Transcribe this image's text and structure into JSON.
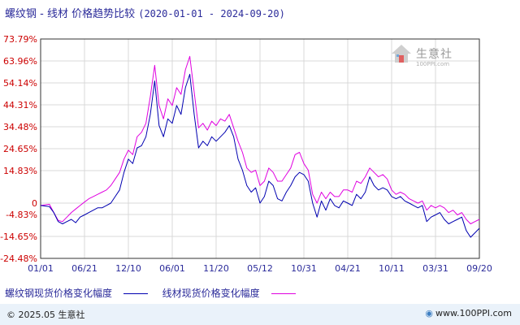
{
  "title": {
    "main": "螺纹钢 - 线材 价格趋势比较",
    "range": "(2020-01-01 - 2024-09-20)"
  },
  "logo": {
    "text": "生意社",
    "sub": "100PPI.com"
  },
  "footer": {
    "copyright": "© 2025.05 生意社",
    "website": "www.100PPI.com"
  },
  "colors": {
    "series1": "#0000b0",
    "series2": "#e000e0",
    "grid": "#d8d8d8",
    "axis": "#333333"
  },
  "chart_data": {
    "type": "line",
    "x_ticks": [
      "01/01",
      "06/21",
      "12/10",
      "06/01",
      "11/20",
      "05/12",
      "10/31",
      "04/21",
      "10/11",
      "03/31",
      "09/20"
    ],
    "y_ticks": [
      "73.79%",
      "63.96%",
      "54.14%",
      "44.31%",
      "34.48%",
      "24.65%",
      "14.83%",
      "0",
      "-4.83%",
      "-14.65%",
      "-24.48%"
    ],
    "y_tick_values": [
      73.79,
      63.96,
      54.14,
      44.31,
      34.48,
      24.65,
      14.83,
      0,
      -4.83,
      -14.65,
      -24.48
    ],
    "ylim": [
      -24.48,
      73.79
    ],
    "xlim": [
      0,
      100
    ],
    "series": [
      {
        "name": "螺纹钢现货价格变化幅度",
        "color": "#0000b0",
        "x": [
          0,
          2,
          3,
          4,
          5,
          6,
          7,
          8,
          9,
          10,
          11,
          12,
          13,
          14,
          15,
          16,
          17,
          18,
          19,
          20,
          21,
          22,
          23,
          24,
          25,
          26,
          27,
          28,
          29,
          30,
          31,
          32,
          33,
          34,
          35,
          36,
          37,
          38,
          39,
          40,
          41,
          42,
          43,
          44,
          45,
          46,
          47,
          48,
          49,
          50,
          51,
          52,
          53,
          54,
          55,
          56,
          57,
          58,
          59,
          60,
          61,
          62,
          63,
          64,
          65,
          66,
          67,
          68,
          69,
          70,
          71,
          72,
          73,
          74,
          75,
          76,
          77,
          78,
          79,
          80,
          81,
          82,
          83,
          84,
          85,
          86,
          87,
          88,
          89,
          90,
          91,
          92,
          93,
          94,
          95,
          96,
          97,
          98,
          99,
          100
        ],
        "y": [
          -1,
          -1.5,
          -4,
          -8,
          -9,
          -8,
          -7,
          -8.5,
          -6,
          -5,
          -4,
          -3,
          -2,
          -2,
          -1,
          0,
          3,
          6,
          14,
          20,
          18,
          25,
          26,
          30,
          40,
          55,
          35,
          30,
          38,
          36,
          44,
          40,
          52,
          58,
          40,
          25,
          28,
          26,
          30,
          28,
          30,
          32,
          35,
          30,
          20,
          15,
          8,
          5,
          7,
          0,
          3,
          10,
          8,
          2,
          1,
          5,
          8,
          12,
          14,
          13,
          10,
          0,
          -6,
          1,
          -3,
          2,
          -1,
          -2,
          1,
          0,
          -1,
          4,
          2,
          5,
          12,
          8,
          6,
          7,
          6,
          3,
          2,
          3,
          1,
          0,
          -1,
          -2,
          -1,
          -8,
          -6,
          -5,
          -4,
          -7,
          -9,
          -8,
          -7,
          -6,
          -12,
          -15,
          -13,
          -11
        ]
      },
      {
        "name": "线材现货价格变化幅度",
        "color": "#e000e0",
        "x": [
          0,
          2,
          3,
          4,
          5,
          6,
          7,
          8,
          9,
          10,
          11,
          12,
          13,
          14,
          15,
          16,
          17,
          18,
          19,
          20,
          21,
          22,
          23,
          24,
          25,
          26,
          27,
          28,
          29,
          30,
          31,
          32,
          33,
          34,
          35,
          36,
          37,
          38,
          39,
          40,
          41,
          42,
          43,
          44,
          45,
          46,
          47,
          48,
          49,
          50,
          51,
          52,
          53,
          54,
          55,
          56,
          57,
          58,
          59,
          60,
          61,
          62,
          63,
          64,
          65,
          66,
          67,
          68,
          69,
          70,
          71,
          72,
          73,
          74,
          75,
          76,
          77,
          78,
          79,
          80,
          81,
          82,
          83,
          84,
          85,
          86,
          87,
          88,
          89,
          90,
          91,
          92,
          93,
          94,
          95,
          96,
          97,
          98,
          99,
          100
        ],
        "y": [
          -1,
          -0.5,
          -4,
          -7.5,
          -8,
          -6,
          -4,
          -2.5,
          -1,
          0.5,
          2,
          3,
          4,
          5,
          6,
          8,
          11,
          14,
          20,
          24,
          22,
          30,
          32,
          36,
          48,
          62,
          44,
          38,
          47,
          44,
          52,
          49,
          60,
          66,
          50,
          34,
          36,
          33,
          37,
          35,
          38,
          37,
          40,
          34,
          28,
          23,
          16,
          14,
          15,
          8,
          10,
          16,
          14,
          10,
          10,
          13,
          16,
          22,
          23,
          18,
          15,
          4,
          0,
          5,
          2,
          5,
          3,
          3,
          6,
          6,
          5,
          10,
          9,
          12,
          16,
          14,
          12,
          13,
          11,
          6,
          4,
          5,
          4,
          2,
          1,
          0,
          1,
          -3,
          -1,
          -2,
          -1,
          -2,
          -4,
          -3,
          -5,
          -4,
          -7,
          -9,
          -8,
          -7
        ]
      }
    ],
    "grid": true,
    "legend": "bottom-left"
  }
}
